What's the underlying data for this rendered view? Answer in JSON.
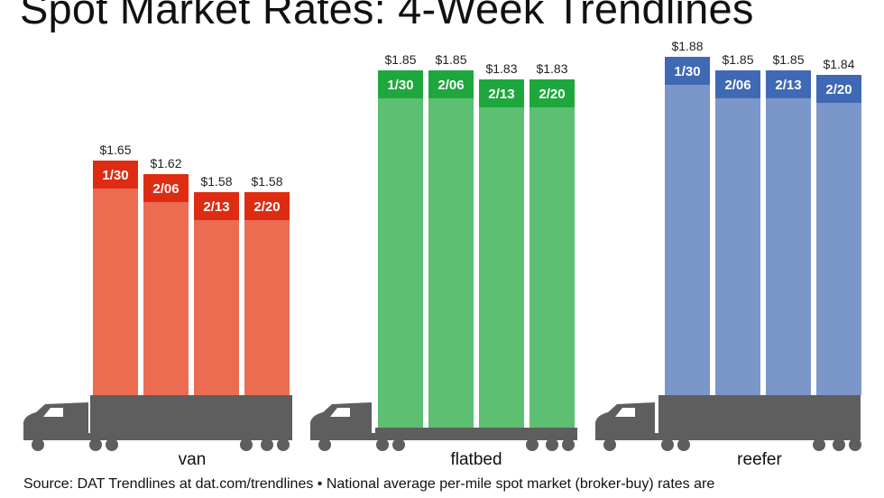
{
  "title": "Spot Market Rates: 4-Week Trendlines",
  "source_line1": "Source: DAT Trendlines at dat.com/trendlines • National average per-mile spot market (broker-buy) rates are",
  "source_line2": "",
  "chart_data": {
    "type": "bar",
    "title": "Spot Market Rates: 4-Week Trendlines",
    "categories": [
      "1/30",
      "2/06",
      "2/13",
      "2/20"
    ],
    "series": [
      {
        "name": "van",
        "values": [
          1.65,
          1.62,
          1.58,
          1.58
        ],
        "labels": [
          "$1.65",
          "$1.62",
          "$1.58",
          "$1.58"
        ],
        "color": "#ec6c52",
        "cap_color": "#dd2c12"
      },
      {
        "name": "flatbed",
        "values": [
          1.85,
          1.85,
          1.83,
          1.83
        ],
        "labels": [
          "$1.85",
          "$1.85",
          "$1.83",
          "$1.83"
        ],
        "color": "#5cbf72",
        "cap_color": "#1ea73c"
      },
      {
        "name": "reefer",
        "values": [
          1.88,
          1.85,
          1.85,
          1.84
        ],
        "labels": [
          "$1.88",
          "$1.85",
          "$1.85",
          "$1.84"
        ],
        "color": "#7b97c9",
        "cap_color": "#3f69b5"
      }
    ],
    "xlabel": "",
    "ylabel": "",
    "grid": false,
    "truck_color": "#5e5e5e"
  }
}
